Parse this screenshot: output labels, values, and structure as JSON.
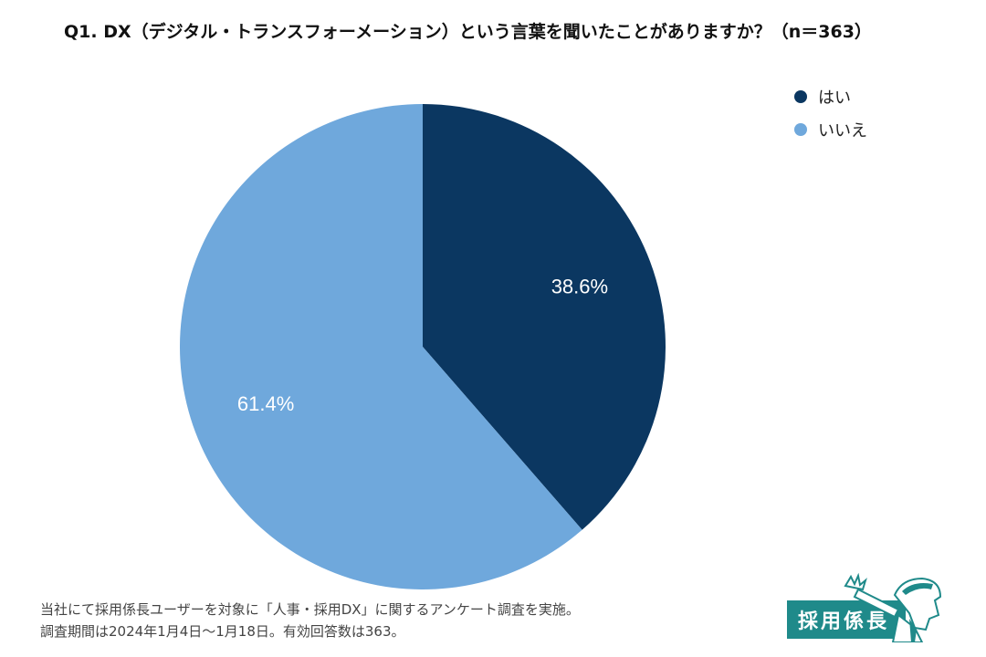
{
  "title": "Q1. DX（デジタル・トランスフォーメーション）という言葉を聞いたことがありますか？（n＝363）",
  "chart_data": {
    "type": "pie",
    "title": "Q1. DX（デジタル・トランスフォーメーション）という言葉を聞いたことがありますか？（n＝363）",
    "categories": [
      "はい",
      "いいえ"
    ],
    "values": [
      38.6,
      61.4
    ],
    "data_labels": [
      "38.6%",
      "61.4%"
    ],
    "colors": [
      "#0b3761",
      "#6fa8dc"
    ],
    "legend": "top-right",
    "start_angle_deg": 0,
    "direction": "clockwise"
  },
  "legend": {
    "items": [
      {
        "label": "はい",
        "color": "#0b3761"
      },
      {
        "label": "いいえ",
        "color": "#6fa8dc"
      }
    ]
  },
  "footnote": {
    "line1": "当社にて採用係長ユーザーを対象に「人事・採用DX」に関するアンケート調査を実施。",
    "line2": "調査期間は2024年1月4日〜1月18日。有効回答数は363。"
  },
  "logo": {
    "text": "採用係長",
    "color": "#1f8a8a"
  }
}
